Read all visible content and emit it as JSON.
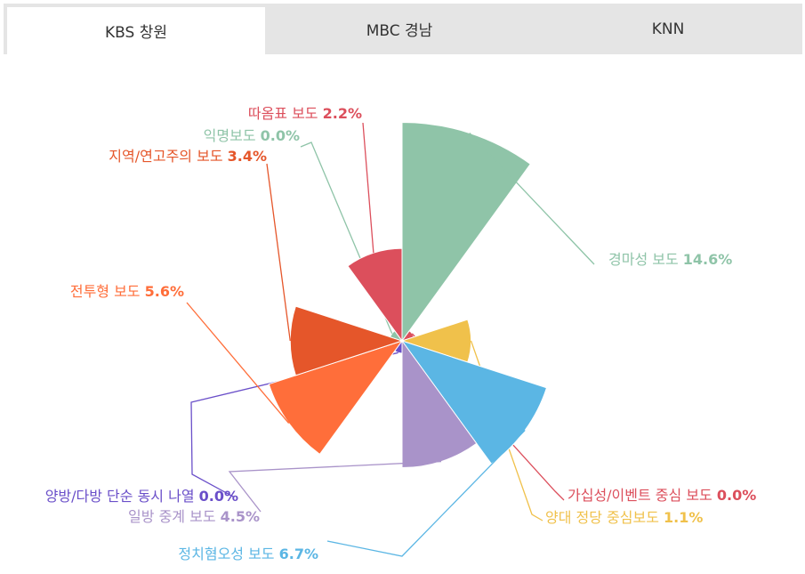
{
  "tabs": [
    {
      "label": "KBS 창원",
      "active": true
    },
    {
      "label": "MBC 경남",
      "active": false
    },
    {
      "label": "KNN",
      "active": false
    }
  ],
  "chart_data": {
    "type": "pie",
    "variant": "variable-radius (rose)",
    "slices": [
      {
        "name": "경마성 보도",
        "value": 14.6,
        "label": "14.6%",
        "color": "#8fc4a8"
      },
      {
        "name": "가십성/이벤트 중심 보도",
        "value": 0.0,
        "label": "0.0%",
        "color": "#dc4f5c"
      },
      {
        "name": "양대 정당 중심보도",
        "value": 1.1,
        "label": "1.1%",
        "color": "#f0c14b"
      },
      {
        "name": "정치혐오성 보도",
        "value": 6.7,
        "label": "6.7%",
        "color": "#5bb6e4"
      },
      {
        "name": "일방 중계 보도",
        "value": 4.5,
        "label": "4.5%",
        "color": "#a993c9"
      },
      {
        "name": "양방/다방 단순 동시 나열",
        "value": 0.0,
        "label": "0.0%",
        "color": "#6a4fc9"
      },
      {
        "name": "전투형 보도",
        "value": 5.6,
        "label": "5.6%",
        "color": "#ff6e3a"
      },
      {
        "name": "지역/연고주의 보도",
        "value": 3.4,
        "label": "3.4%",
        "color": "#e5562a"
      },
      {
        "name": "익명보도",
        "value": 0.0,
        "label": "0.0%",
        "color": "#8fc4a8"
      },
      {
        "name": "따옴표 보도",
        "value": 2.2,
        "label": "2.2%",
        "color": "#dc4f5c"
      }
    ]
  }
}
